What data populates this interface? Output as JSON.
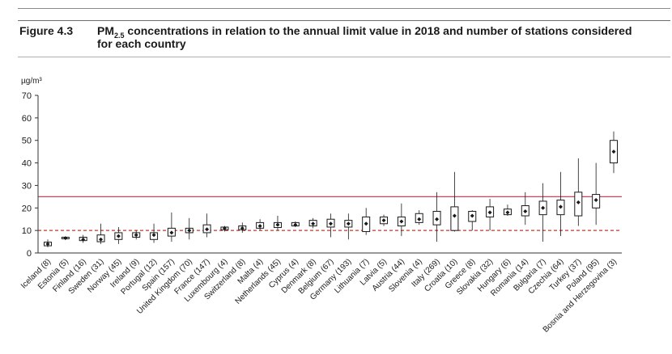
{
  "figure": {
    "label": "Figure 4.3",
    "title_pre": "PM",
    "title_sub": "2.5",
    "title_post": " concentrations in relation to the annual limit value in 2018 and number of stations considered for each country"
  },
  "colors": {
    "limit_line": "#c9455a",
    "reference_line": "#c0392b",
    "box": "#1a1a1a",
    "axis": "#333333"
  },
  "chart_data": {
    "type": "boxplot",
    "ylabel": "µg/m³",
    "ylim": [
      0,
      70
    ],
    "yticks": [
      0,
      10,
      20,
      30,
      40,
      50,
      60,
      70
    ],
    "grid": false,
    "reference_lines": [
      {
        "value": 25,
        "style": "solid",
        "color": "#c9455a"
      },
      {
        "value": 10,
        "style": "dashed",
        "color": "#c0392b"
      }
    ],
    "categories": [
      "Iceland (8)",
      "Estonia (5)",
      "Finland (16)",
      "Sweden (31)",
      "Norway (45)",
      "Ireland (9)",
      "Portugal (12)",
      "Spain (157)",
      "United Kingdom (70)",
      "France (147)",
      "Luxembourg (4)",
      "Switzerland (8)",
      "Malta (4)",
      "Netherlands (45)",
      "Cyprus (4)",
      "Denmark (8)",
      "Belgium (67)",
      "Germany (193)",
      "Lithuania (7)",
      "Latvia (5)",
      "Austria (44)",
      "Slovenia (4)",
      "Italy (269)",
      "Croatia (10)",
      "Greece (8)",
      "Slovakia (32)",
      "Hungary (6)",
      "Romania (14)",
      "Bulgaria (7)",
      "Czechia (64)",
      "Turkey (37)",
      "Poland (95)",
      "Bosnia and Herzegovina (3)"
    ],
    "boxes": [
      {
        "min": 2.5,
        "q1": 3.2,
        "median": 4,
        "q3": 4.8,
        "max": 6
      },
      {
        "min": 6,
        "q1": 6.3,
        "median": 6.6,
        "q3": 7,
        "max": 7.3
      },
      {
        "min": 4.5,
        "q1": 5.5,
        "median": 6,
        "q3": 7,
        "max": 8
      },
      {
        "min": 4,
        "q1": 5,
        "median": 6,
        "q3": 8,
        "max": 13
      },
      {
        "min": 4,
        "q1": 6,
        "median": 7.5,
        "q3": 9,
        "max": 11.5
      },
      {
        "min": 6,
        "q1": 7,
        "median": 8,
        "q3": 9,
        "max": 10
      },
      {
        "min": 4.5,
        "q1": 6,
        "median": 8,
        "q3": 9,
        "max": 13
      },
      {
        "min": 5,
        "q1": 7.5,
        "median": 9,
        "q3": 11,
        "max": 18
      },
      {
        "min": 6,
        "q1": 9,
        "median": 10,
        "q3": 11,
        "max": 15.5
      },
      {
        "min": 7,
        "q1": 9,
        "median": 10.5,
        "q3": 12.5,
        "max": 17.5
      },
      {
        "min": 9.5,
        "q1": 10.3,
        "median": 11,
        "q3": 11.5,
        "max": 12
      },
      {
        "min": 9,
        "q1": 10.3,
        "median": 11,
        "q3": 12,
        "max": 13.5
      },
      {
        "min": 10,
        "q1": 11,
        "median": 12,
        "q3": 13.5,
        "max": 15
      },
      {
        "min": 10,
        "q1": 11.3,
        "median": 12.5,
        "q3": 13.5,
        "max": 16.5
      },
      {
        "min": 11.5,
        "q1": 12,
        "median": 12.5,
        "q3": 13.5,
        "max": 14
      },
      {
        "min": 11,
        "q1": 12,
        "median": 13,
        "q3": 14.5,
        "max": 15.5
      },
      {
        "min": 7,
        "q1": 11.5,
        "median": 13,
        "q3": 15,
        "max": 17.5
      },
      {
        "min": 6,
        "q1": 11.5,
        "median": 13,
        "q3": 14.5,
        "max": 17.5
      },
      {
        "min": 8,
        "q1": 9.5,
        "median": 13,
        "q3": 16,
        "max": 20
      },
      {
        "min": 12,
        "q1": 13,
        "median": 14.5,
        "q3": 16,
        "max": 17
      },
      {
        "min": 7.5,
        "q1": 12,
        "median": 14,
        "q3": 16,
        "max": 22
      },
      {
        "min": 12.5,
        "q1": 13.5,
        "median": 15,
        "q3": 17.5,
        "max": 19
      },
      {
        "min": 5,
        "q1": 12.5,
        "median": 15,
        "q3": 18.5,
        "max": 27
      },
      {
        "min": 9.5,
        "q1": 10,
        "median": 16.5,
        "q3": 20.5,
        "max": 36
      },
      {
        "min": 10,
        "q1": 14,
        "median": 16.5,
        "q3": 18.5,
        "max": 19
      },
      {
        "min": 10,
        "q1": 16,
        "median": 18,
        "q3": 20.5,
        "max": 24
      },
      {
        "min": 16.5,
        "q1": 17,
        "median": 18,
        "q3": 19.5,
        "max": 21.5
      },
      {
        "min": 12.5,
        "q1": 16.5,
        "median": 18.5,
        "q3": 21,
        "max": 27
      },
      {
        "min": 5,
        "q1": 17,
        "median": 20,
        "q3": 23,
        "max": 31
      },
      {
        "min": 7.5,
        "q1": 17,
        "median": 20.5,
        "q3": 23.5,
        "max": 36
      },
      {
        "min": 12,
        "q1": 16.5,
        "median": 22.5,
        "q3": 27,
        "max": 42
      },
      {
        "min": 12.5,
        "q1": 20,
        "median": 23.5,
        "q3": 26,
        "max": 40
      },
      {
        "min": 35.5,
        "q1": 40,
        "median": 45,
        "q3": 50,
        "max": 54
      }
    ]
  }
}
